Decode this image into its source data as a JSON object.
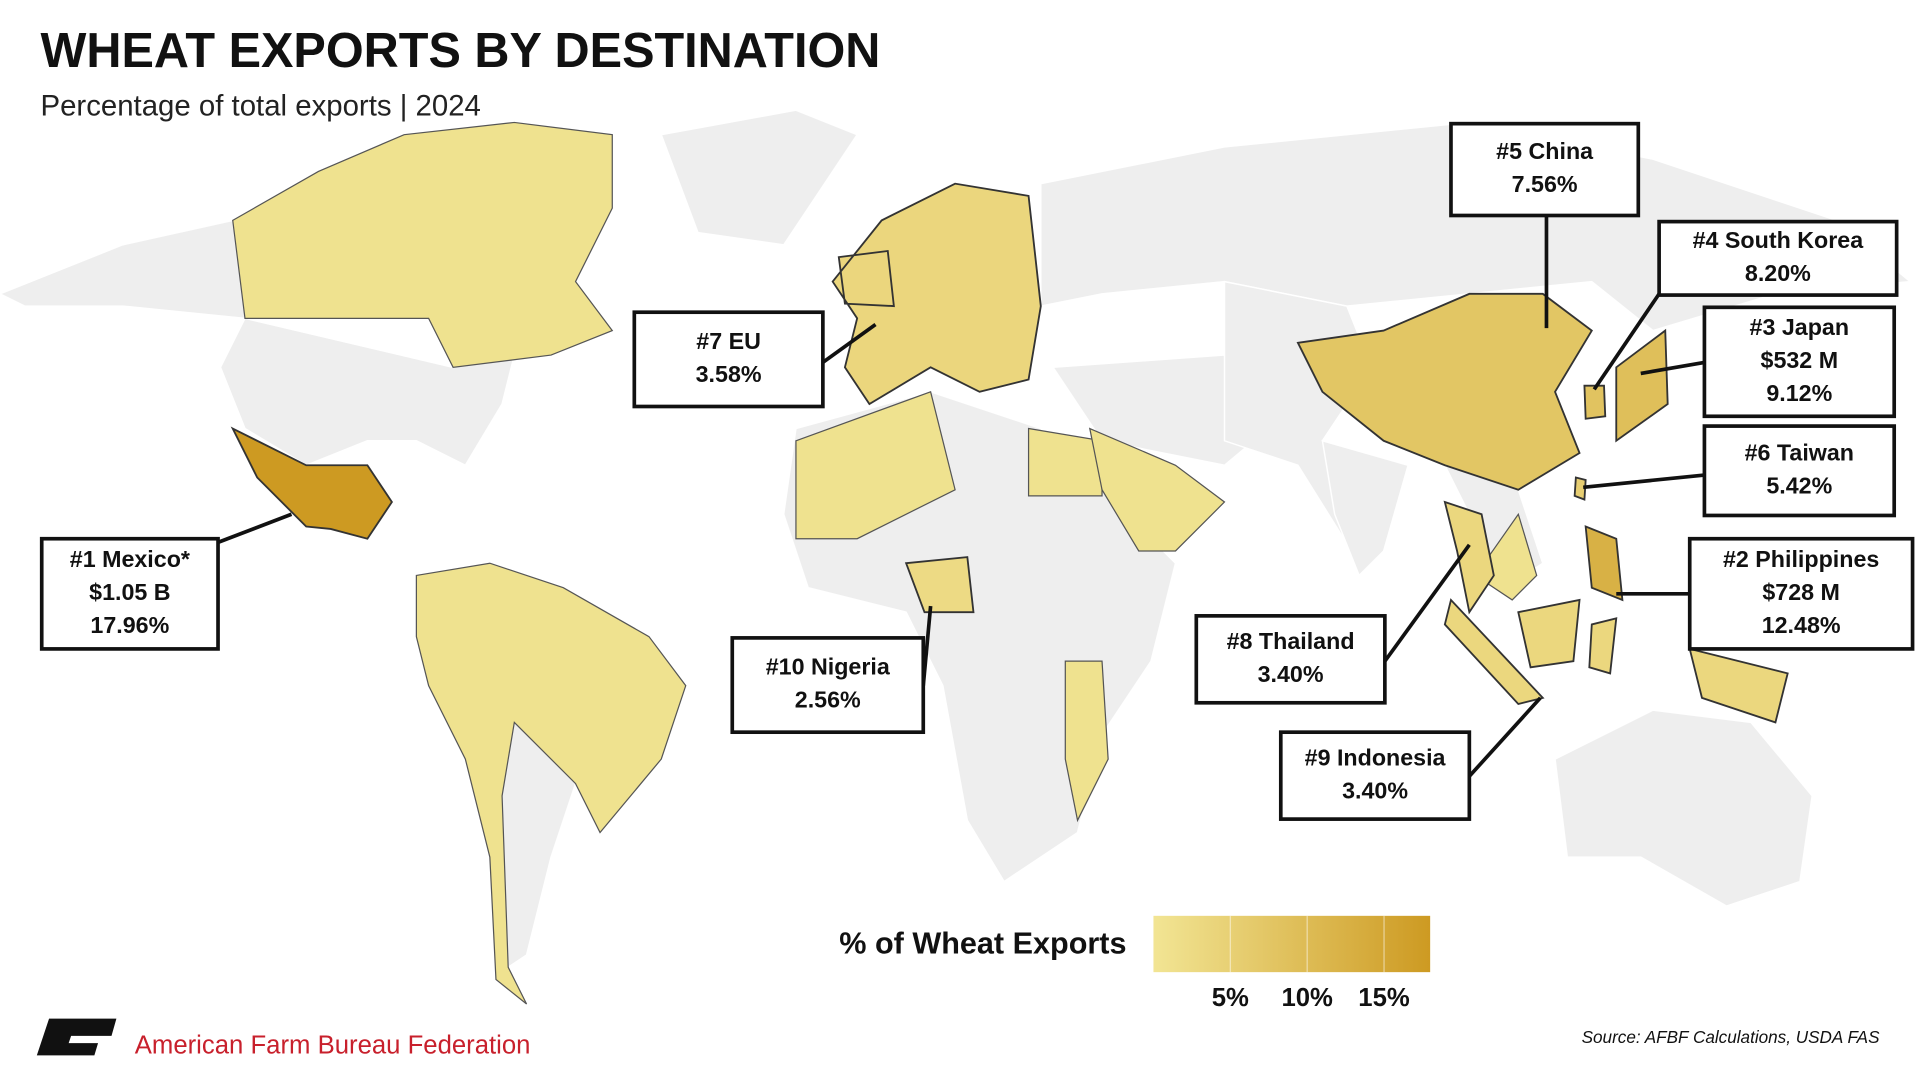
{
  "chart_data": {
    "type": "map",
    "title": "WHEAT EXPORTS BY DESTINATION",
    "subtitle": "Percentage of total exports | 2024",
    "callouts": [
      {
        "name": "#1 Mexico*",
        "amount": "$1.05 B",
        "share": 17.96,
        "share_label": "17.96%"
      },
      {
        "name": "#2 Philippines",
        "amount": "$728 M",
        "share": 12.48,
        "share_label": "12.48%"
      },
      {
        "name": "#3 Japan",
        "amount": "$532 M",
        "share": 9.12,
        "share_label": "9.12%"
      },
      {
        "name": "#4 South Korea",
        "share": 8.2,
        "share_label": "8.20%"
      },
      {
        "name": "#5 China",
        "share": 7.56,
        "share_label": "7.56%"
      },
      {
        "name": "#6 Taiwan",
        "share": 5.42,
        "share_label": "5.42%"
      },
      {
        "name": "#7 EU",
        "share": 3.58,
        "share_label": "3.58%"
      },
      {
        "name": "#8 Thailand",
        "share": 3.4,
        "share_label": "3.40%"
      },
      {
        "name": "#9 Indonesia",
        "share": 3.4,
        "share_label": "3.40%"
      },
      {
        "name": "#10 Nigeria",
        "share": 2.56,
        "share_label": "2.56%"
      }
    ],
    "legend_title": "% of Wheat Exports",
    "clim": [
      0,
      18
    ],
    "cticks": [
      {
        "value": 5,
        "label": "5%"
      },
      {
        "value": 10,
        "label": "10%"
      },
      {
        "value": 15,
        "label": "15%"
      }
    ],
    "color_low": "#f2e594",
    "color_high": "#cd9a22",
    "source": "Source: AFBF Calculations, USDA FAS",
    "organization": "American Farm Bureau Federation"
  }
}
